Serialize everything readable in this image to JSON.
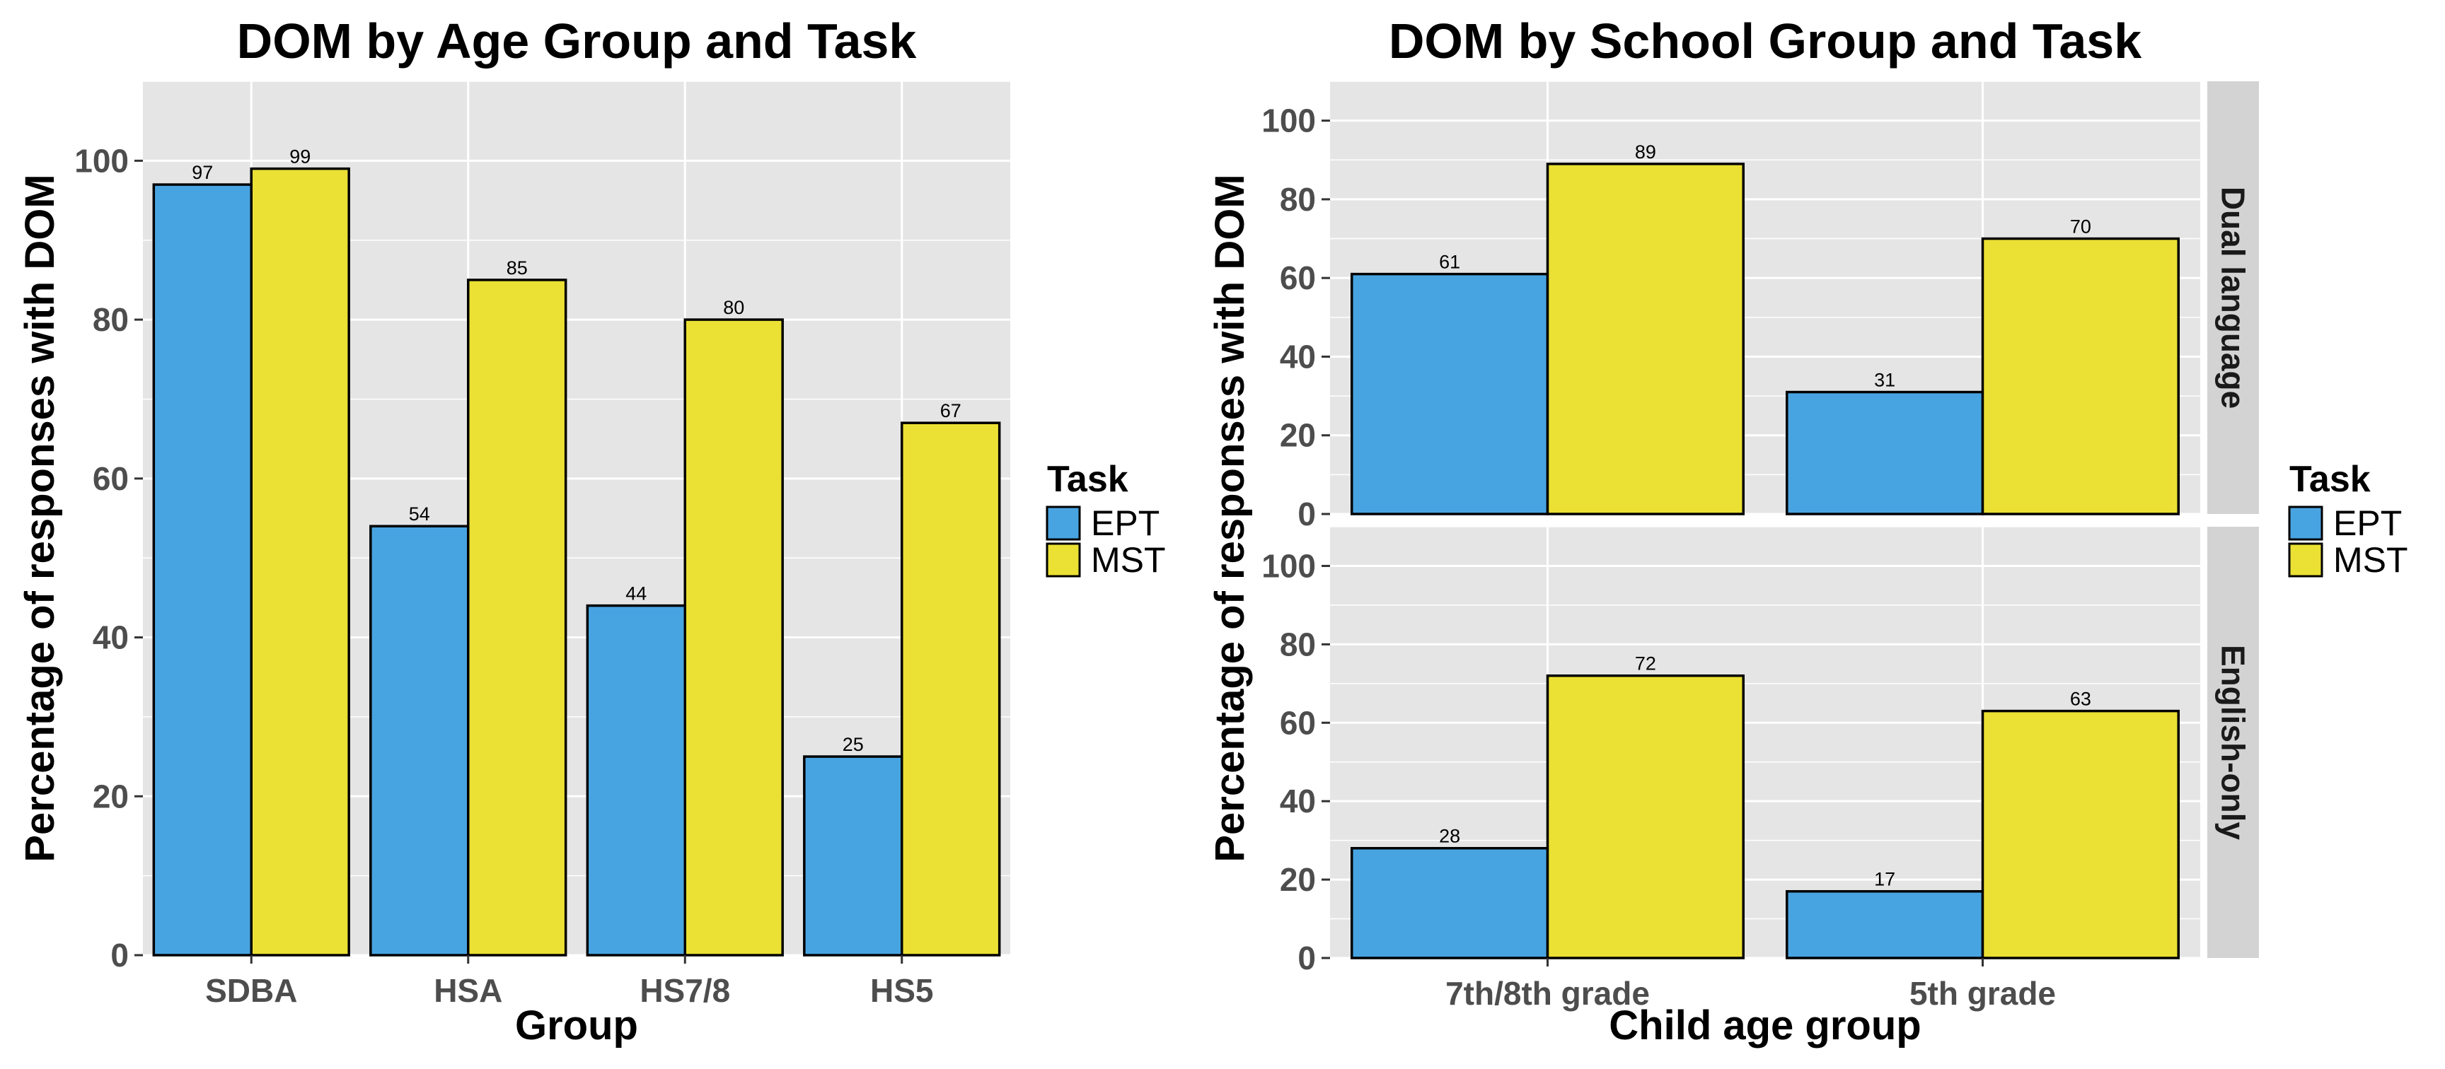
{
  "chart_data": [
    {
      "type": "bar",
      "title": "DOM by Age Group and Task",
      "xlabel": "Group",
      "ylabel": "Percentage of responses with DOM",
      "categories": [
        "SDBA",
        "HSA",
        "HS7/8",
        "HS5"
      ],
      "series": [
        {
          "name": "EPT",
          "values": [
            97,
            54,
            44,
            25
          ],
          "labels": [
            "97",
            "54",
            "44",
            "25"
          ]
        },
        {
          "name": "MST",
          "values": [
            99,
            85,
            80,
            67
          ],
          "labels": [
            "99",
            "85",
            "80",
            "67"
          ]
        }
      ],
      "ylim": [
        0,
        110
      ],
      "yticks": [
        0,
        20,
        40,
        60,
        80,
        100
      ],
      "grid": true,
      "legend": {
        "title": "Task",
        "position": "right",
        "entries": [
          "EPT",
          "MST"
        ]
      }
    },
    {
      "type": "bar",
      "title": "DOM by School Group and Task",
      "xlabel": "Child age group",
      "ylabel": "Percentage of responses with DOM",
      "categories": [
        "7th/8th grade",
        "5th grade"
      ],
      "ylim": [
        0,
        110
      ],
      "yticks": [
        0,
        20,
        40,
        60,
        80,
        100
      ],
      "grid": true,
      "facets": [
        {
          "label": "Dual language",
          "series": [
            {
              "name": "EPT",
              "values": [
                61,
                31
              ],
              "labels": [
                "61",
                "31"
              ]
            },
            {
              "name": "MST",
              "values": [
                89,
                70
              ],
              "labels": [
                "89",
                "70"
              ]
            }
          ]
        },
        {
          "label": "English-only",
          "series": [
            {
              "name": "EPT",
              "values": [
                28,
                17
              ],
              "labels": [
                "28",
                "17"
              ]
            },
            {
              "name": "MST",
              "values": [
                72,
                63
              ],
              "labels": [
                "72",
                "63"
              ]
            }
          ]
        }
      ],
      "legend": {
        "title": "Task",
        "position": "right",
        "entries": [
          "EPT",
          "MST"
        ]
      }
    }
  ],
  "colors": {
    "EPT": "#48A4E1",
    "MST": "#EBE034",
    "panel_bg": "#E5E5E5",
    "grid": "#FFFFFF",
    "strip_bg": "#D3D3D3"
  }
}
